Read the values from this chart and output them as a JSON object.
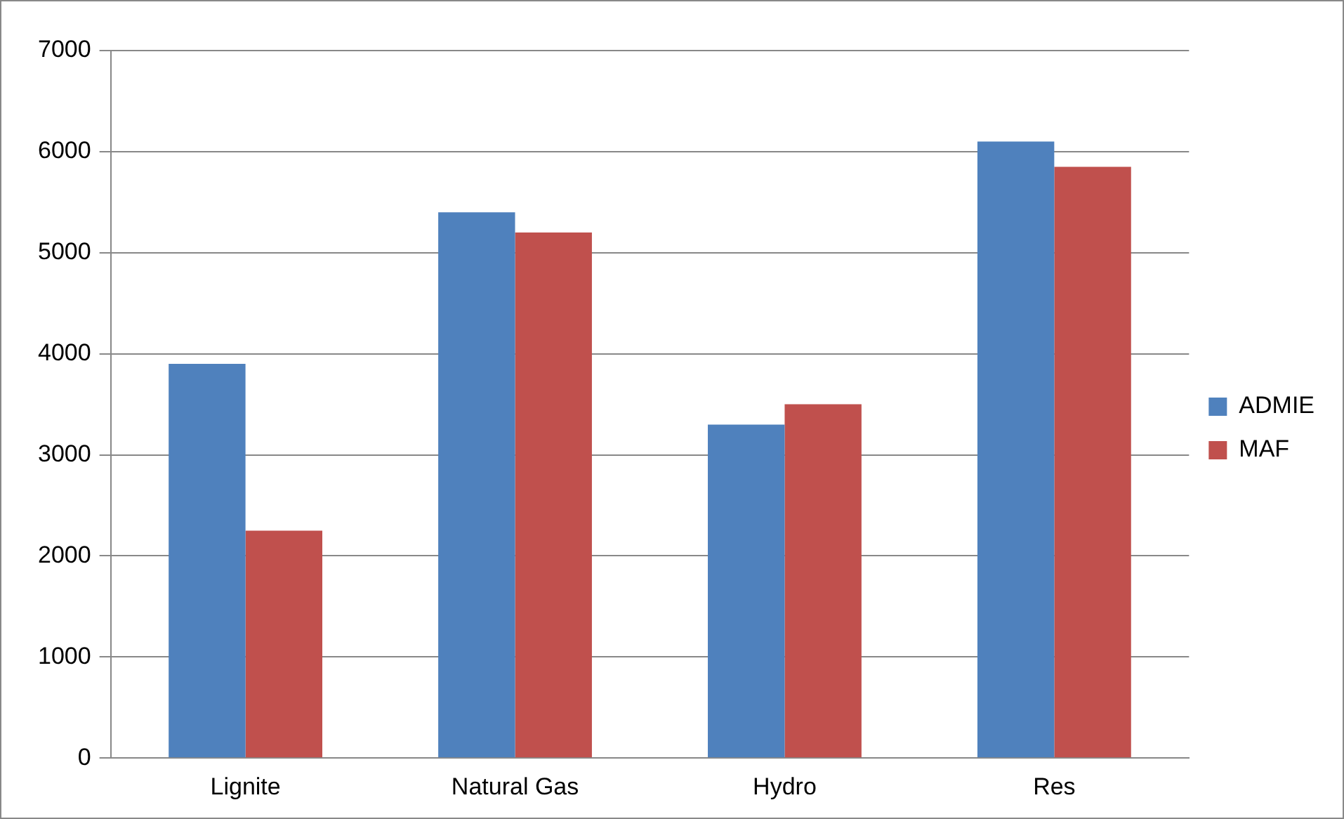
{
  "chart_data": {
    "type": "bar",
    "categories": [
      "Lignite",
      "Natural Gas",
      "Hydro",
      "Res"
    ],
    "series": [
      {
        "name": "ADMIE",
        "color": "#4f81bd",
        "values": [
          3900,
          5400,
          3300,
          6100
        ]
      },
      {
        "name": "MAF",
        "color": "#c0504d",
        "values": [
          2250,
          5200,
          3500,
          5850
        ]
      }
    ],
    "ylim": [
      0,
      7000
    ],
    "yticks": [
      0,
      1000,
      2000,
      3000,
      4000,
      5000,
      6000,
      7000
    ],
    "grid": "y",
    "legend": "right"
  }
}
